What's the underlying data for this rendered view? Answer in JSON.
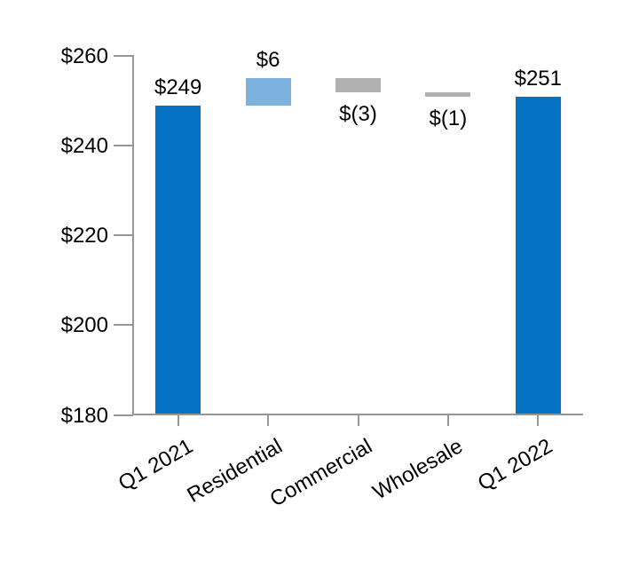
{
  "chart_data": {
    "type": "bar",
    "subtype": "waterfall",
    "title": "",
    "xlabel": "",
    "ylabel": "",
    "grid": false,
    "legend": null,
    "categories": [
      "Q1 2021",
      "Residential",
      "Commercial",
      "Wholesale",
      "Q1 2022"
    ],
    "bars": [
      {
        "category": "Q1 2021",
        "value": 249,
        "start": 180,
        "end": 249,
        "role": "total",
        "label": "$249",
        "label_position": "above"
      },
      {
        "category": "Residential",
        "value": 6,
        "start": 249,
        "end": 255,
        "role": "increase",
        "label": "$6",
        "label_position": "above"
      },
      {
        "category": "Commercial",
        "value": -3,
        "start": 255,
        "end": 252,
        "role": "decrease",
        "label": "$(3)",
        "label_position": "below"
      },
      {
        "category": "Wholesale",
        "value": -1,
        "start": 252,
        "end": 251,
        "role": "decrease",
        "label": "$(1)",
        "label_position": "below"
      },
      {
        "category": "Q1 2022",
        "value": 251,
        "start": 180,
        "end": 251,
        "role": "total",
        "label": "$251",
        "label_position": "above"
      }
    ],
    "y_axis": {
      "min": 180,
      "max": 260,
      "ticks": [
        {
          "value": 260,
          "label": "$260"
        },
        {
          "value": 240,
          "label": "$240"
        },
        {
          "value": 220,
          "label": "$220"
        },
        {
          "value": 200,
          "label": "$200"
        },
        {
          "value": 180,
          "label": "$180"
        }
      ]
    },
    "colors": {
      "total": "#0572c2",
      "increase": "#7eb2de",
      "decrease": "#b1b1b1",
      "axis": "#969696",
      "text": "#000000",
      "background": "#ffffff"
    }
  }
}
